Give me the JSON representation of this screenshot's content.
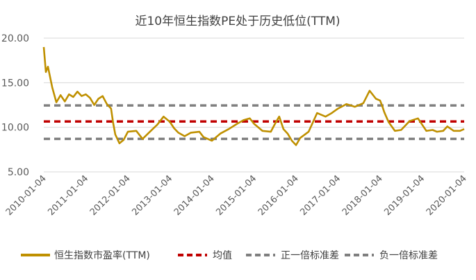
{
  "chart_data": {
    "type": "line",
    "title": "近10年恒生指数PE处于历史低位(TTM)",
    "xlabel": "",
    "ylabel": "",
    "ylim": [
      5,
      20
    ],
    "yticks": [
      "5.00",
      "10.00",
      "15.00",
      "20.00"
    ],
    "xticks": [
      "2010-01-04",
      "2011-01-04",
      "2012-01-04",
      "2013-01-04",
      "2014-01-04",
      "2015-01-04",
      "2016-01-04",
      "2017-01-04",
      "2018-01-04",
      "2019-01-04",
      "2020-01-04"
    ],
    "grid": "horizontal",
    "legend_position": "bottom",
    "series": [
      {
        "name": "恒生指数市盈率(TTM)",
        "color": "#BF9000",
        "style": "solid",
        "x": [
          2010.0,
          2010.05,
          2010.1,
          2010.2,
          2010.3,
          2010.4,
          2010.5,
          2010.6,
          2010.7,
          2010.8,
          2010.9,
          2011.0,
          2011.1,
          2011.2,
          2011.3,
          2011.4,
          2011.5,
          2011.6,
          2011.65,
          2011.7,
          2011.8,
          2011.9,
          2012.0,
          2012.2,
          2012.35,
          2012.5,
          2012.7,
          2012.85,
          2013.0,
          2013.1,
          2013.2,
          2013.35,
          2013.5,
          2013.7,
          2013.8,
          2014.0,
          2014.2,
          2014.4,
          2014.6,
          2014.75,
          2014.9,
          2015.0,
          2015.2,
          2015.4,
          2015.5,
          2015.6,
          2015.7,
          2015.8,
          2015.9,
          2016.0,
          2016.1,
          2016.3,
          2016.5,
          2016.7,
          2016.85,
          2017.0,
          2017.2,
          2017.4,
          2017.6,
          2017.75,
          2017.9,
          2018.0,
          2018.05,
          2018.1,
          2018.2,
          2018.35,
          2018.5,
          2018.7,
          2018.9,
          2019.1,
          2019.25,
          2019.35,
          2019.5,
          2019.6,
          2019.75,
          2019.9,
          2020.0
        ],
        "values": [
          19.0,
          16.2,
          16.8,
          14.5,
          12.8,
          13.6,
          12.9,
          13.7,
          13.4,
          14.0,
          13.5,
          13.7,
          13.3,
          12.5,
          13.2,
          13.5,
          12.6,
          12.1,
          10.5,
          9.2,
          8.2,
          8.6,
          9.5,
          9.6,
          8.7,
          9.4,
          10.3,
          11.2,
          10.6,
          9.9,
          9.4,
          9.0,
          9.4,
          9.5,
          8.9,
          8.5,
          9.3,
          9.8,
          10.4,
          10.8,
          11.0,
          10.4,
          9.6,
          9.5,
          10.4,
          11.2,
          9.8,
          9.3,
          8.5,
          8.0,
          8.8,
          9.5,
          11.6,
          11.2,
          11.6,
          12.1,
          12.6,
          12.3,
          12.7,
          14.1,
          13.2,
          13.0,
          12.4,
          11.7,
          10.6,
          9.6,
          9.7,
          10.7,
          11.0,
          9.6,
          9.7,
          9.5,
          9.6,
          10.1,
          9.6,
          9.6,
          9.8
        ]
      },
      {
        "name": "均值",
        "color": "#C00000",
        "style": "dashed",
        "values": [
          10.65
        ]
      },
      {
        "name": "正一倍标准差",
        "color": "#7F7F7F",
        "style": "dashed",
        "values": [
          12.45
        ]
      },
      {
        "name": "负一倍标准差",
        "color": "#7F7F7F",
        "style": "dashed",
        "values": [
          8.7
        ]
      }
    ]
  }
}
